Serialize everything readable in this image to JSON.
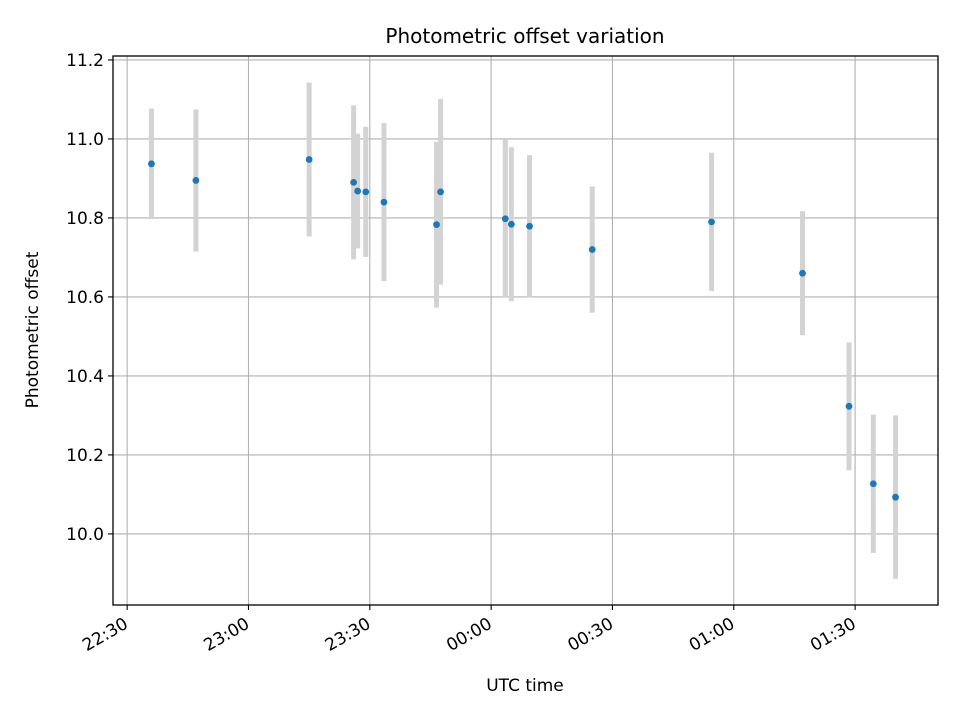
{
  "chart_data": {
    "type": "scatter",
    "title": "Photometric offset variation",
    "xlabel": "UTC time",
    "ylabel": "Photometric offset",
    "x_tick_labels": [
      "22:30",
      "23:00",
      "23:30",
      "00:00",
      "00:30",
      "01:00",
      "01:30"
    ],
    "y_tick_labels": [
      "10.0",
      "10.2",
      "10.4",
      "10.6",
      "10.8",
      "11.0",
      "11.2"
    ],
    "xlim": [
      "22:26:30",
      "01:50:30"
    ],
    "ylim": [
      9.82,
      11.21
    ],
    "grid": true,
    "marker_color": "#1f77b4",
    "errorbar_color": "#d3d3d3",
    "series": [
      {
        "points": [
          {
            "x": "22:36:00",
            "y": 10.937,
            "yerr": 0.14
          },
          {
            "x": "22:47:00",
            "y": 10.895,
            "yerr": 0.18
          },
          {
            "x": "23:15:00",
            "y": 10.948,
            "yerr": 0.195
          },
          {
            "x": "23:26:00",
            "y": 10.89,
            "yerr": 0.195
          },
          {
            "x": "23:27:00",
            "y": 10.868,
            "yerr": 0.145
          },
          {
            "x": "23:29:00",
            "y": 10.866,
            "yerr": 0.165
          },
          {
            "x": "23:33:30",
            "y": 10.84,
            "yerr": 0.2
          },
          {
            "x": "23:46:30",
            "y": 10.783,
            "yerr": 0.21
          },
          {
            "x": "23:47:30",
            "y": 10.866,
            "yerr": 0.235
          },
          {
            "x": "00:03:30",
            "y": 10.798,
            "yerr": 0.2
          },
          {
            "x": "00:05:00",
            "y": 10.784,
            "yerr": 0.195
          },
          {
            "x": "00:09:30",
            "y": 10.779,
            "yerr": 0.18
          },
          {
            "x": "00:25:00",
            "y": 10.72,
            "yerr": 0.16
          },
          {
            "x": "00:54:30",
            "y": 10.79,
            "yerr": 0.175
          },
          {
            "x": "01:17:00",
            "y": 10.66,
            "yerr": 0.157
          },
          {
            "x": "01:28:30",
            "y": 10.323,
            "yerr": 0.162
          },
          {
            "x": "01:34:30",
            "y": 10.127,
            "yerr": 0.175
          },
          {
            "x": "01:40:00",
            "y": 10.093,
            "yerr": 0.207
          }
        ]
      }
    ]
  }
}
